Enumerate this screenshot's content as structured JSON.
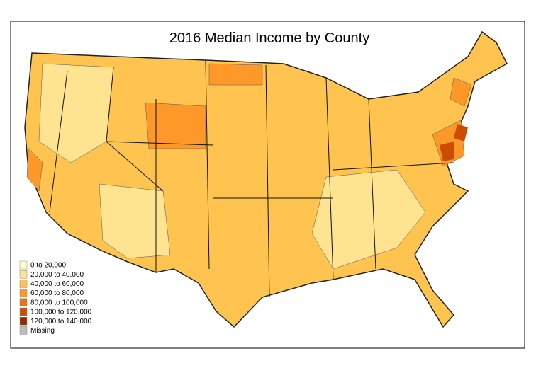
{
  "title": "2016 Median Income by County",
  "legend": {
    "items": [
      {
        "label": "0 to 20,000",
        "color": "#ffffcc"
      },
      {
        "label": "20,000 to 40,000",
        "color": "#fee391"
      },
      {
        "label": "40,000 to 60,000",
        "color": "#fec44f"
      },
      {
        "label": "60,000 to 80,000",
        "color": "#fe9929"
      },
      {
        "label": "80,000 to 100,000",
        "color": "#ec7014"
      },
      {
        "label": "100,000 to 120,000",
        "color": "#cc4c02"
      },
      {
        "label": "120,000 to 140,000",
        "color": "#8c2d04"
      },
      {
        "label": "Missing",
        "color": "#bdbdbd"
      }
    ]
  }
}
